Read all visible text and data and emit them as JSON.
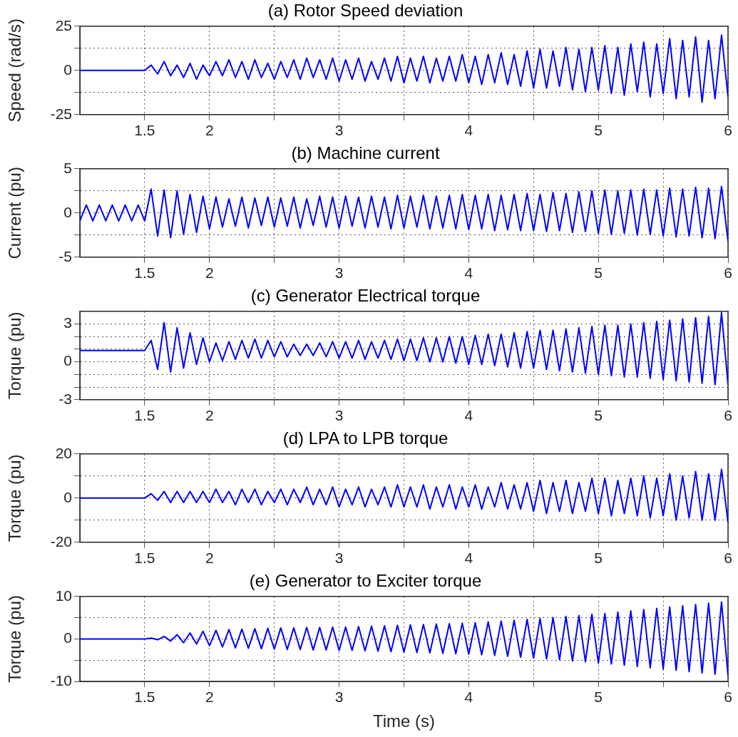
{
  "chart_data": [
    {
      "type": "line",
      "title": "(a) Rotor Speed deviation",
      "ylabel": "Speed (rad/s)",
      "color": "#0000ff",
      "marker": "none",
      "grid": true,
      "xlim": [
        1,
        6
      ],
      "xticks": [
        1.5,
        2,
        {
          "value": 2.5,
          "label": null
        },
        3,
        {
          "value": 3.5,
          "label": null
        },
        4,
        {
          "value": 4.5,
          "label": null
        },
        5,
        {
          "value": 5.5,
          "label": null
        },
        6
      ],
      "ylim": [
        -25,
        25
      ],
      "yticks": [
        -25,
        {
          "value": -12.5,
          "label": null
        },
        0,
        {
          "value": 12.5,
          "label": null
        },
        25
      ],
      "x": [
        1,
        1.05,
        1.1,
        1.15,
        1.2,
        1.25,
        1.3,
        1.35,
        1.4,
        1.45,
        1.5,
        1.55,
        1.6,
        1.65,
        1.7,
        1.75,
        1.8,
        1.85,
        1.9,
        1.95,
        2,
        2.05,
        2.1,
        2.15,
        2.2,
        2.25,
        2.3,
        2.35,
        2.4,
        2.45,
        2.5,
        2.55,
        2.6,
        2.65,
        2.7,
        2.75,
        2.8,
        2.85,
        2.9,
        2.95,
        3,
        3.05,
        3.1,
        3.15,
        3.2,
        3.25,
        3.3,
        3.35,
        3.4,
        3.45,
        3.5,
        3.55,
        3.6,
        3.65,
        3.7,
        3.75,
        3.8,
        3.85,
        3.9,
        3.95,
        4,
        4.05,
        4.1,
        4.15,
        4.2,
        4.25,
        4.3,
        4.35,
        4.4,
        4.45,
        4.5,
        4.55,
        4.6,
        4.65,
        4.7,
        4.75,
        4.8,
        4.85,
        4.9,
        4.95,
        5,
        5.05,
        5.1,
        5.15,
        5.2,
        5.25,
        5.3,
        5.35,
        5.4,
        5.45,
        5.5,
        5.55,
        5.6,
        5.65,
        5.7,
        5.75,
        5.8,
        5.85,
        5.9,
        5.95,
        6
      ],
      "values": [
        0,
        0,
        0,
        0,
        0,
        0,
        0,
        0,
        0,
        0,
        0,
        3,
        -2,
        5,
        -3,
        3,
        -4,
        4,
        -5,
        3,
        -3,
        5,
        -3,
        6,
        -4,
        5,
        -5,
        6,
        -4,
        4,
        -5,
        5,
        -4,
        6,
        -5,
        7,
        -4,
        6,
        -5,
        7,
        -6,
        6,
        -5,
        7,
        -6,
        5,
        -5,
        7,
        -6,
        8,
        -7,
        7,
        -6,
        8,
        -7,
        7,
        -6,
        8,
        -6,
        9,
        -7,
        8,
        -8,
        9,
        -7,
        10,
        -8,
        9,
        -9,
        11,
        -10,
        12,
        -10,
        11,
        -9,
        13,
        -11,
        12,
        -12,
        13,
        -11,
        14,
        -13,
        13,
        -14,
        15,
        -12,
        16,
        -15,
        15,
        -13,
        18,
        -16,
        17,
        -15,
        19,
        -18,
        17,
        -16,
        20,
        -15
      ]
    },
    {
      "type": "line",
      "title": "(b) Machine current",
      "ylabel": "Current (pu)",
      "color": "#0000ff",
      "marker": "none",
      "grid": true,
      "xlim": [
        1,
        6
      ],
      "xticks": [
        1.5,
        2,
        {
          "value": 2.5,
          "label": null
        },
        3,
        {
          "value": 3.5,
          "label": null
        },
        4,
        {
          "value": 4.5,
          "label": null
        },
        5,
        {
          "value": 5.5,
          "label": null
        },
        6
      ],
      "ylim": [
        -5,
        5
      ],
      "yticks": [
        -5,
        {
          "value": -2.5,
          "label": null
        },
        0,
        {
          "value": 2.5,
          "label": null
        },
        5
      ],
      "x": [
        1,
        1.05,
        1.1,
        1.15,
        1.2,
        1.25,
        1.3,
        1.35,
        1.4,
        1.45,
        1.5,
        1.55,
        1.6,
        1.65,
        1.7,
        1.75,
        1.8,
        1.85,
        1.9,
        1.95,
        2,
        2.05,
        2.1,
        2.15,
        2.2,
        2.25,
        2.3,
        2.35,
        2.4,
        2.45,
        2.5,
        2.55,
        2.6,
        2.65,
        2.7,
        2.75,
        2.8,
        2.85,
        2.9,
        2.95,
        3,
        3.05,
        3.1,
        3.15,
        3.2,
        3.25,
        3.3,
        3.35,
        3.4,
        3.45,
        3.5,
        3.55,
        3.6,
        3.65,
        3.7,
        3.75,
        3.8,
        3.85,
        3.9,
        3.95,
        4,
        4.05,
        4.1,
        4.15,
        4.2,
        4.25,
        4.3,
        4.35,
        4.4,
        4.45,
        4.5,
        4.55,
        4.6,
        4.65,
        4.7,
        4.75,
        4.8,
        4.85,
        4.9,
        4.95,
        5,
        5.05,
        5.1,
        5.15,
        5.2,
        5.25,
        5.3,
        5.35,
        5.4,
        5.45,
        5.5,
        5.55,
        5.6,
        5.65,
        5.7,
        5.75,
        5.8,
        5.85,
        5.9,
        5.95,
        6
      ],
      "values": [
        -0.9,
        0.9,
        -0.9,
        0.9,
        -0.9,
        0.9,
        -0.9,
        0.9,
        -0.9,
        0.9,
        -0.9,
        2.7,
        -2.6,
        2.6,
        -2.8,
        2.5,
        -2.4,
        2.1,
        -2.2,
        1.9,
        -1.8,
        1.8,
        -1.6,
        1.6,
        -1.5,
        1.8,
        -1.7,
        1.7,
        -1.4,
        1.8,
        -1.6,
        1.7,
        -1.5,
        1.8,
        -1.7,
        1.6,
        -1.4,
        1.9,
        -1.6,
        1.8,
        -1.7,
        1.9,
        -1.5,
        1.8,
        -1.7,
        1.9,
        -1.6,
        1.8,
        -1.8,
        2,
        -1.7,
        1.9,
        -1.6,
        2,
        -1.8,
        1.9,
        -1.7,
        2,
        -1.8,
        2.1,
        -1.9,
        2,
        -1.8,
        2.1,
        -2,
        2,
        -1.9,
        2.1,
        -2,
        2.2,
        -2,
        2.1,
        -2.1,
        2.3,
        -2,
        2.2,
        -2.2,
        2.4,
        -2.1,
        2.5,
        -2.3,
        2.6,
        -2.4,
        2.5,
        -2.3,
        2.6,
        -2.5,
        2.7,
        -2.4,
        2.6,
        -2.6,
        2.8,
        -2.7,
        2.7,
        -2.6,
        2.9,
        -2.8,
        2.8,
        -2.9,
        3,
        -3.2
      ]
    },
    {
      "type": "line",
      "title": "(c) Generator Electrical torque",
      "ylabel": "Torque (pu)",
      "color": "#0000ff",
      "marker": "none",
      "grid": true,
      "xlim": [
        1,
        6
      ],
      "xticks": [
        1.5,
        2,
        {
          "value": 2.5,
          "label": null
        },
        3,
        {
          "value": 3.5,
          "label": null
        },
        4,
        {
          "value": 4.5,
          "label": null
        },
        5,
        {
          "value": 5.5,
          "label": null
        },
        6
      ],
      "ylim": [
        -3,
        4
      ],
      "yticks": [
        -3,
        {
          "value": -2,
          "label": null
        },
        {
          "value": -1,
          "label": null
        },
        0,
        {
          "value": 1,
          "label": null
        },
        {
          "value": 2,
          "label": null
        },
        3
      ],
      "x": [
        1,
        1.05,
        1.1,
        1.15,
        1.2,
        1.25,
        1.3,
        1.35,
        1.4,
        1.45,
        1.5,
        1.55,
        1.6,
        1.65,
        1.7,
        1.75,
        1.8,
        1.85,
        1.9,
        1.95,
        2,
        2.05,
        2.1,
        2.15,
        2.2,
        2.25,
        2.3,
        2.35,
        2.4,
        2.45,
        2.5,
        2.55,
        2.6,
        2.65,
        2.7,
        2.75,
        2.8,
        2.85,
        2.9,
        2.95,
        3,
        3.05,
        3.1,
        3.15,
        3.2,
        3.25,
        3.3,
        3.35,
        3.4,
        3.45,
        3.5,
        3.55,
        3.6,
        3.65,
        3.7,
        3.75,
        3.8,
        3.85,
        3.9,
        3.95,
        4,
        4.05,
        4.1,
        4.15,
        4.2,
        4.25,
        4.3,
        4.35,
        4.4,
        4.45,
        4.5,
        4.55,
        4.6,
        4.65,
        4.7,
        4.75,
        4.8,
        4.85,
        4.9,
        4.95,
        5,
        5.05,
        5.1,
        5.15,
        5.2,
        5.25,
        5.3,
        5.35,
        5.4,
        5.45,
        5.5,
        5.55,
        5.6,
        5.65,
        5.7,
        5.75,
        5.8,
        5.85,
        5.9,
        5.95,
        6
      ],
      "values": [
        0.9,
        0.9,
        0.9,
        0.9,
        0.9,
        0.9,
        0.9,
        0.9,
        0.9,
        0.9,
        0.9,
        1.7,
        -0.6,
        3.1,
        -0.8,
        2.7,
        -0.5,
        2.3,
        -0.2,
        1.9,
        0,
        1.5,
        0.1,
        1.6,
        0.2,
        1.7,
        0.3,
        1.8,
        0.3,
        1.7,
        0.4,
        1.6,
        0.4,
        1.4,
        0.5,
        1.4,
        0.5,
        1.5,
        0.4,
        1.6,
        0.3,
        1.6,
        0.3,
        1.7,
        0.2,
        1.6,
        0.3,
        1.7,
        0.2,
        1.8,
        0.1,
        1.8,
        0.1,
        1.9,
        0,
        1.9,
        0,
        2,
        -0.1,
        2,
        -0.2,
        2.1,
        -0.2,
        2.2,
        -0.3,
        2.2,
        -0.4,
        2.3,
        -0.5,
        2.4,
        -0.5,
        2.5,
        -0.6,
        2.5,
        -0.7,
        2.6,
        -0.8,
        2.7,
        -0.9,
        2.8,
        -1,
        2.9,
        -1.1,
        2.9,
        -1.2,
        3,
        -1.2,
        3.1,
        -1.3,
        3.2,
        -1.4,
        3.3,
        -1.5,
        3.4,
        -1.6,
        3.5,
        -1.7,
        3.6,
        -1.8,
        3.9,
        -1.8
      ]
    },
    {
      "type": "line",
      "title": "(d) LPA to LPB torque",
      "ylabel": "Torque (pu)",
      "color": "#0000ff",
      "marker": "none",
      "grid": true,
      "xlim": [
        1,
        6
      ],
      "xticks": [
        1.5,
        2,
        {
          "value": 2.5,
          "label": null
        },
        3,
        {
          "value": 3.5,
          "label": null
        },
        4,
        {
          "value": 4.5,
          "label": null
        },
        5,
        {
          "value": 5.5,
          "label": null
        },
        6
      ],
      "ylim": [
        -20,
        20
      ],
      "yticks": [
        -20,
        {
          "value": -10,
          "label": null
        },
        0,
        {
          "value": 10,
          "label": null
        },
        20
      ],
      "x": [
        1,
        1.05,
        1.1,
        1.15,
        1.2,
        1.25,
        1.3,
        1.35,
        1.4,
        1.45,
        1.5,
        1.55,
        1.6,
        1.65,
        1.7,
        1.75,
        1.8,
        1.85,
        1.9,
        1.95,
        2,
        2.05,
        2.1,
        2.15,
        2.2,
        2.25,
        2.3,
        2.35,
        2.4,
        2.45,
        2.5,
        2.55,
        2.6,
        2.65,
        2.7,
        2.75,
        2.8,
        2.85,
        2.9,
        2.95,
        3,
        3.05,
        3.1,
        3.15,
        3.2,
        3.25,
        3.3,
        3.35,
        3.4,
        3.45,
        3.5,
        3.55,
        3.6,
        3.65,
        3.7,
        3.75,
        3.8,
        3.85,
        3.9,
        3.95,
        4,
        4.05,
        4.1,
        4.15,
        4.2,
        4.25,
        4.3,
        4.35,
        4.4,
        4.45,
        4.5,
        4.55,
        4.6,
        4.65,
        4.7,
        4.75,
        4.8,
        4.85,
        4.9,
        4.95,
        5,
        5.05,
        5.1,
        5.15,
        5.2,
        5.25,
        5.3,
        5.35,
        5.4,
        5.45,
        5.5,
        5.55,
        5.6,
        5.65,
        5.7,
        5.75,
        5.8,
        5.85,
        5.9,
        5.95,
        6
      ],
      "values": [
        0,
        0,
        0,
        0,
        0,
        0,
        0,
        0,
        0,
        0,
        0,
        2,
        -1,
        3,
        -2,
        3,
        -2,
        3,
        -2,
        3,
        -2,
        4,
        -2,
        3,
        -3,
        4,
        -2,
        4,
        -3,
        3,
        -2,
        4,
        -3,
        4,
        -2,
        5,
        -3,
        4,
        -3,
        5,
        -4,
        4,
        -3,
        5,
        -4,
        4,
        -3,
        5,
        -4,
        6,
        -4,
        5,
        -4,
        6,
        -5,
        5,
        -4,
        6,
        -5,
        5,
        -4,
        6,
        -5,
        5,
        -4,
        7,
        -5,
        6,
        -5,
        7,
        -6,
        8,
        -7,
        7,
        -6,
        8,
        -7,
        7,
        -6,
        9,
        -7,
        9,
        -8,
        8,
        -7,
        9,
        -8,
        10,
        -9,
        9,
        -8,
        11,
        -10,
        10,
        -9,
        12,
        -10,
        11,
        -10,
        13,
        -11
      ]
    },
    {
      "type": "line",
      "title": "(e) Generator to Exciter torque",
      "ylabel": "Torque (pu)",
      "xlabel": "Time (s)",
      "color": "#0000ff",
      "marker": "none",
      "grid": true,
      "xlim": [
        1,
        6
      ],
      "xticks": [
        1.5,
        2,
        {
          "value": 2.5,
          "label": null
        },
        3,
        {
          "value": 3.5,
          "label": null
        },
        4,
        {
          "value": 4.5,
          "label": null
        },
        5,
        {
          "value": 5.5,
          "label": null
        },
        6
      ],
      "ylim": [
        -10,
        10
      ],
      "yticks": [
        -10,
        {
          "value": -5,
          "label": null
        },
        0,
        {
          "value": 5,
          "label": null
        },
        10
      ],
      "x": [
        1,
        1.05,
        1.1,
        1.15,
        1.2,
        1.25,
        1.3,
        1.35,
        1.4,
        1.45,
        1.5,
        1.55,
        1.6,
        1.65,
        1.7,
        1.75,
        1.8,
        1.85,
        1.9,
        1.95,
        2,
        2.05,
        2.1,
        2.15,
        2.2,
        2.25,
        2.3,
        2.35,
        2.4,
        2.45,
        2.5,
        2.55,
        2.6,
        2.65,
        2.7,
        2.75,
        2.8,
        2.85,
        2.9,
        2.95,
        3,
        3.05,
        3.1,
        3.15,
        3.2,
        3.25,
        3.3,
        3.35,
        3.4,
        3.45,
        3.5,
        3.55,
        3.6,
        3.65,
        3.7,
        3.75,
        3.8,
        3.85,
        3.9,
        3.95,
        4,
        4.05,
        4.1,
        4.15,
        4.2,
        4.25,
        4.3,
        4.35,
        4.4,
        4.45,
        4.5,
        4.55,
        4.6,
        4.65,
        4.7,
        4.75,
        4.8,
        4.85,
        4.9,
        4.95,
        5,
        5.05,
        5.1,
        5.15,
        5.2,
        5.25,
        5.3,
        5.35,
        5.4,
        5.45,
        5.5,
        5.55,
        5.6,
        5.65,
        5.7,
        5.75,
        5.8,
        5.85,
        5.9,
        5.95,
        6
      ],
      "values": [
        0,
        0,
        0,
        0,
        0,
        0,
        0,
        0,
        0,
        0,
        0,
        0.2,
        -0.2,
        0.6,
        -0.5,
        1,
        -0.9,
        1.4,
        -1.2,
        1.8,
        -1.6,
        2,
        -1.9,
        2.2,
        -2.1,
        2.3,
        -2.2,
        2.4,
        -2.3,
        2.5,
        -2.4,
        2.6,
        -2.5,
        2.6,
        -2.5,
        2.7,
        -2.6,
        2.7,
        -2.6,
        2.8,
        -2.7,
        2.8,
        -2.7,
        2.9,
        -2.8,
        3,
        -2.9,
        3.1,
        -3,
        3.2,
        -3.1,
        3.3,
        -3.2,
        3.4,
        -3.3,
        3.5,
        -3.4,
        3.6,
        -3.5,
        3.7,
        -3.6,
        3.8,
        -3.7,
        4,
        -3.9,
        4.2,
        -4.1,
        4.4,
        -4.3,
        4.6,
        -4.5,
        4.8,
        -4.7,
        5,
        -4.9,
        5.3,
        -5.2,
        5.5,
        -5.4,
        5.8,
        -5.7,
        6,
        -5.9,
        6.3,
        -6.2,
        6.6,
        -6.5,
        6.9,
        -6.8,
        7.2,
        -7.1,
        7.5,
        -7.4,
        7.8,
        -7.7,
        8.1,
        -8,
        8.4,
        -8.3,
        8.7,
        -8.6
      ]
    }
  ]
}
